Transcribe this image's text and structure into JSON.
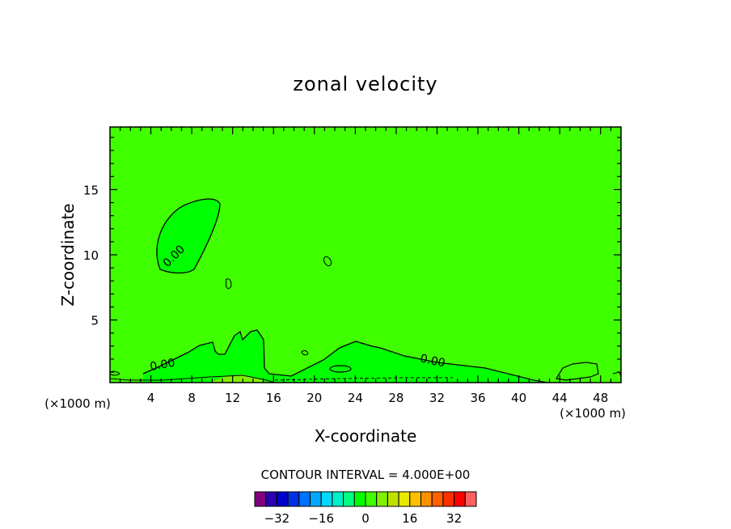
{
  "chart_data": {
    "type": "heatmap",
    "title": "zonal velocity",
    "xlabel": "X-coordinate",
    "ylabel": "Z-coordinate",
    "x_unit_label": "(×1000 m)",
    "xlim": [
      0,
      50
    ],
    "ylim": [
      0.2,
      19.8
    ],
    "xticks": [
      4,
      8,
      12,
      16,
      20,
      24,
      28,
      32,
      36,
      40,
      44,
      48
    ],
    "yticks": [
      5,
      10,
      15
    ],
    "contour_interval_label": "CONTOUR INTERVAL = 4.000E+00",
    "contour_interval": 4,
    "dominant_value": 2,
    "contour_labels": [
      {
        "text": "0.00",
        "x": 6.5,
        "z": 9.7
      },
      {
        "text": "0.00",
        "x": 5.2,
        "z": 1.3
      },
      {
        "text": "0.00",
        "x": 31.5,
        "z": 1.6
      }
    ],
    "regions": [
      {
        "name": "upper negative region",
        "value": -2,
        "center_x": 7.5,
        "center_z": 11.5
      },
      {
        "name": "near-surface region",
        "value": -2,
        "center_x": 23,
        "center_z": 1.5
      }
    ],
    "colorbar": {
      "levels": [
        -40,
        -36,
        -32,
        -28,
        -24,
        -20,
        -16,
        -12,
        -8,
        -4,
        0,
        4,
        8,
        12,
        16,
        20,
        24,
        28,
        32,
        36,
        40
      ],
      "colors": [
        "#800080",
        "#2a00b0",
        "#0000c8",
        "#0030e6",
        "#0070ff",
        "#00a8ff",
        "#00d8ff",
        "#00f0c8",
        "#00ff80",
        "#00ff00",
        "#40ff00",
        "#80f000",
        "#c0e000",
        "#e8e800",
        "#ffc000",
        "#ff9000",
        "#ff6000",
        "#ff3000",
        "#ff0000",
        "#ff6060",
        "#ffa0a0"
      ],
      "tick_values": [
        -32,
        -16,
        0,
        16,
        32
      ],
      "tick_labels": [
        "−32",
        "−16",
        "0",
        "16",
        "32"
      ]
    }
  }
}
